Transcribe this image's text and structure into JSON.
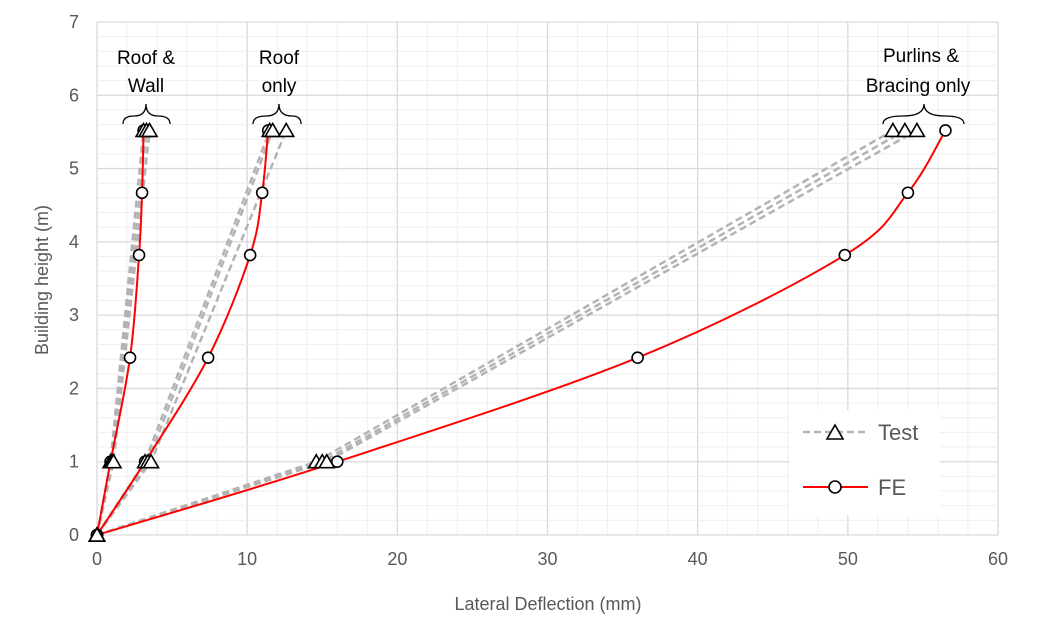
{
  "chart_data": {
    "type": "line",
    "xlabel": "Lateral Deflection (mm)",
    "ylabel": "Building height (m)",
    "xlim": [
      0,
      60
    ],
    "ylim": [
      0,
      7
    ],
    "xticks": [
      0,
      10,
      20,
      30,
      40,
      50,
      60
    ],
    "yticks": [
      0,
      1,
      2,
      3,
      4,
      5,
      6,
      7
    ],
    "grid": true,
    "legend": {
      "position": "bottom-right",
      "entries": [
        "Test",
        "FE"
      ]
    },
    "annotations": [
      {
        "lines": [
          "Roof &",
          "Wall"
        ]
      },
      {
        "lines": [
          "Roof",
          "only"
        ]
      },
      {
        "lines": [
          "Purlins &",
          "Bracing only"
        ]
      }
    ],
    "colors": {
      "test": "#b3b3b3",
      "fe": "#ff0000",
      "grid": "#d9d9d9"
    },
    "series": [
      {
        "name": "Test",
        "group": "Roof & Wall",
        "x": [
          0,
          0.9,
          3.1
        ],
        "y": [
          0,
          1.0,
          5.52
        ]
      },
      {
        "name": "Test",
        "group": "Roof & Wall",
        "x": [
          0,
          1.0,
          3.3
        ],
        "y": [
          0,
          1.0,
          5.52
        ]
      },
      {
        "name": "Test",
        "group": "Roof & Wall",
        "x": [
          0,
          1.1,
          3.5
        ],
        "y": [
          0,
          1.0,
          5.52
        ]
      },
      {
        "name": "Test",
        "group": "Roof only",
        "x": [
          0,
          3.2,
          11.5
        ],
        "y": [
          0,
          1.0,
          5.52
        ]
      },
      {
        "name": "Test",
        "group": "Roof only",
        "x": [
          0,
          3.4,
          11.7
        ],
        "y": [
          0,
          1.0,
          5.52
        ]
      },
      {
        "name": "Test",
        "group": "Roof only",
        "x": [
          0,
          3.6,
          12.6
        ],
        "y": [
          0,
          1.0,
          5.52
        ]
      },
      {
        "name": "Test",
        "group": "Purlins & Bracing only",
        "x": [
          0,
          14.6,
          53.0
        ],
        "y": [
          0,
          1.0,
          5.52
        ]
      },
      {
        "name": "Test",
        "group": "Purlins & Bracing only",
        "x": [
          0,
          15.0,
          53.8
        ],
        "y": [
          0,
          1.0,
          5.52
        ]
      },
      {
        "name": "Test",
        "group": "Purlins & Bracing only",
        "x": [
          0,
          15.3,
          54.6
        ],
        "y": [
          0,
          1.0,
          5.52
        ]
      },
      {
        "name": "FE",
        "group": "Roof & Wall",
        "x": [
          0,
          0.9,
          2.2,
          2.8,
          3.0,
          3.1
        ],
        "y": [
          0,
          1.0,
          2.42,
          3.82,
          4.67,
          5.52
        ]
      },
      {
        "name": "FE",
        "group": "Roof only",
        "x": [
          0,
          3.2,
          7.4,
          10.2,
          11.0,
          11.4
        ],
        "y": [
          0,
          1.0,
          2.42,
          3.82,
          4.67,
          5.52
        ]
      },
      {
        "name": "FE",
        "group": "Purlins & Bracing only",
        "x": [
          0,
          16.0,
          36.0,
          49.8,
          54.0,
          56.5
        ],
        "y": [
          0,
          1.0,
          2.42,
          3.82,
          4.67,
          5.52
        ]
      }
    ]
  }
}
